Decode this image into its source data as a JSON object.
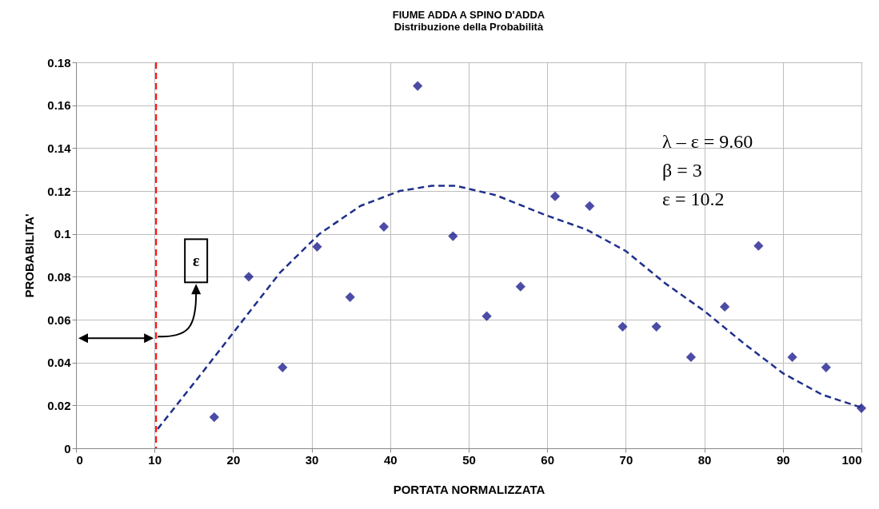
{
  "chart_data": {
    "type": "scatter",
    "title": "FIUME ADDA A SPINO D'ADDA",
    "subtitle": "Distribuzione della Probabilità",
    "xlabel": "PORTATA NORMALIZZATA",
    "ylabel": "PROBABILITA'",
    "xlim": [
      0,
      100
    ],
    "ylim": [
      0,
      0.18
    ],
    "xticks": [
      0,
      10,
      20,
      30,
      40,
      50,
      60,
      70,
      80,
      90,
      100
    ],
    "yticks": [
      0,
      0.02,
      0.04,
      0.06,
      0.08,
      0.1,
      0.12,
      0.14,
      0.16,
      0.18
    ],
    "grid": true,
    "series": [
      {
        "color": "#000080",
        "marker": "diamond",
        "x": [
          17.6,
          22.0,
          26.3,
          30.7,
          34.9,
          39.2,
          43.5,
          48.0,
          52.3,
          56.6,
          61.0,
          65.4,
          69.6,
          73.9,
          78.3,
          82.6,
          86.9,
          91.2,
          95.5,
          100
        ],
        "values": [
          0.0145,
          0.08,
          0.0377,
          0.094,
          0.0705,
          0.1033,
          0.169,
          0.0989,
          0.0616,
          0.0754,
          0.1175,
          0.113,
          0.0567,
          0.0567,
          0.0425,
          0.066,
          0.0944,
          0.0425,
          0.0377,
          0.0187
        ]
      },
      {
        "type": "line",
        "line_style": "dashed",
        "color": "#1f2f8a",
        "x": [
          10.4,
          15.8,
          20.9,
          26,
          31,
          36.2,
          41.2,
          45.3,
          48.4,
          53.5,
          59.6,
          65,
          70,
          75,
          80,
          85,
          90,
          95,
          100
        ],
        "values": [
          0.009,
          0.034,
          0.058,
          0.082,
          0.1,
          0.113,
          0.12,
          0.1224,
          0.1224,
          0.118,
          0.109,
          0.102,
          0.092,
          0.077,
          0.064,
          0.049,
          0.035,
          0.025,
          0.019
        ]
      }
    ],
    "ref_lines": [
      {
        "axis": "x",
        "value": 10.2,
        "color": "#ff0000",
        "line_style": "dashed"
      }
    ],
    "annotations": [
      "λ – ε = 9.60",
      "β = 3",
      "ε = 10.2",
      "ε"
    ]
  }
}
